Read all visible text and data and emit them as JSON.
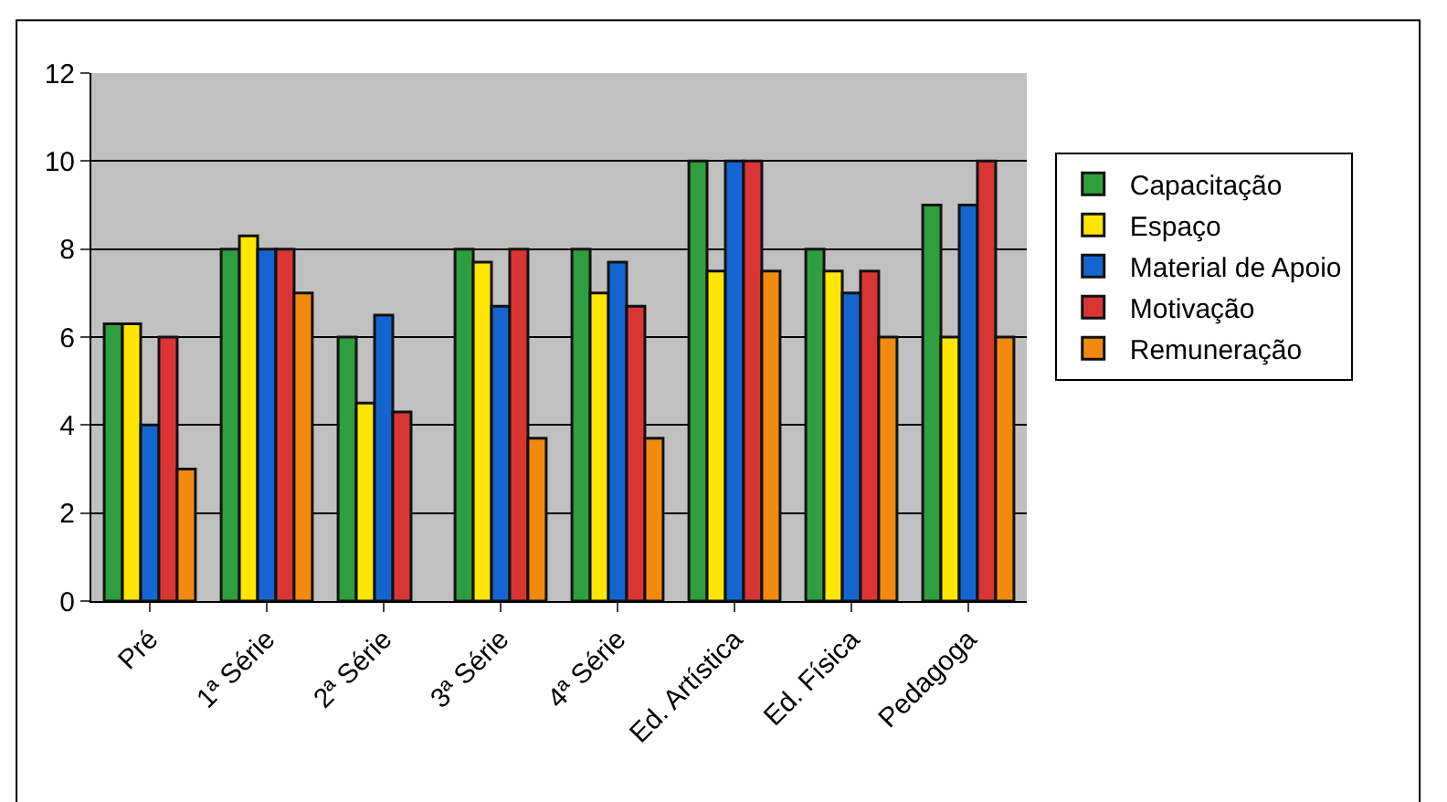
{
  "chart_data": {
    "type": "bar",
    "categories": [
      "Pré",
      "1ª Série",
      "2ª Série",
      "3ª Série",
      "4ª Série",
      "Ed. Artística",
      "Ed. Física",
      "Pedagoga"
    ],
    "series": [
      {
        "name": "Capacitação",
        "color": "#2e9e3e",
        "values": [
          6.3,
          8,
          6,
          8,
          8,
          10,
          8,
          9
        ]
      },
      {
        "name": "Espaço",
        "color": "#ffe600",
        "values": [
          6.3,
          8.3,
          4.5,
          7.7,
          7,
          7.5,
          7.5,
          6
        ]
      },
      {
        "name": "Material de Apoio",
        "color": "#1565d0",
        "values": [
          4,
          8,
          6.5,
          6.7,
          7.7,
          10,
          7,
          9
        ]
      },
      {
        "name": "Motivação",
        "color": "#d93535",
        "values": [
          6,
          8,
          4.3,
          8,
          6.7,
          10,
          7.5,
          10
        ]
      },
      {
        "name": "Remuneração",
        "color": "#f28a10",
        "values": [
          3,
          7,
          null,
          3.7,
          3.7,
          7.5,
          6,
          6
        ]
      }
    ],
    "ylim": [
      0,
      12
    ],
    "yticks": [
      0,
      2,
      4,
      6,
      8,
      10,
      12
    ],
    "grid": "y",
    "legend": "right"
  }
}
